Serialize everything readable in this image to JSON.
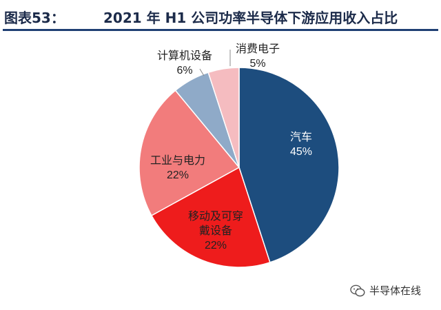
{
  "header": {
    "figure_label": "图表53：",
    "title": "2021 年 H1 公司功率半导体下游应用收入占比"
  },
  "chart_data": {
    "type": "pie",
    "title": "2021 年 H1 公司功率半导体下游应用收入占比",
    "slices": [
      {
        "label_lines": [
          "汽车"
        ],
        "value": 45,
        "value_label": "45%",
        "color": "#1d4d7e"
      },
      {
        "label_lines": [
          "移动及可穿",
          "戴设备"
        ],
        "value": 22,
        "value_label": "22%",
        "color": "#ee1c1c"
      },
      {
        "label_lines": [
          "工业与电力"
        ],
        "value": 22,
        "value_label": "22%",
        "color": "#f27c7c"
      },
      {
        "label_lines": [
          "计算机设备"
        ],
        "value": 6,
        "value_label": "6%",
        "color": "#8faac8"
      },
      {
        "label_lines": [
          "消费电子"
        ],
        "value": 5,
        "value_label": "5%",
        "color": "#f5bcc0"
      }
    ]
  },
  "watermark": {
    "text": "半导体在线",
    "icon": "wechat-icon"
  }
}
